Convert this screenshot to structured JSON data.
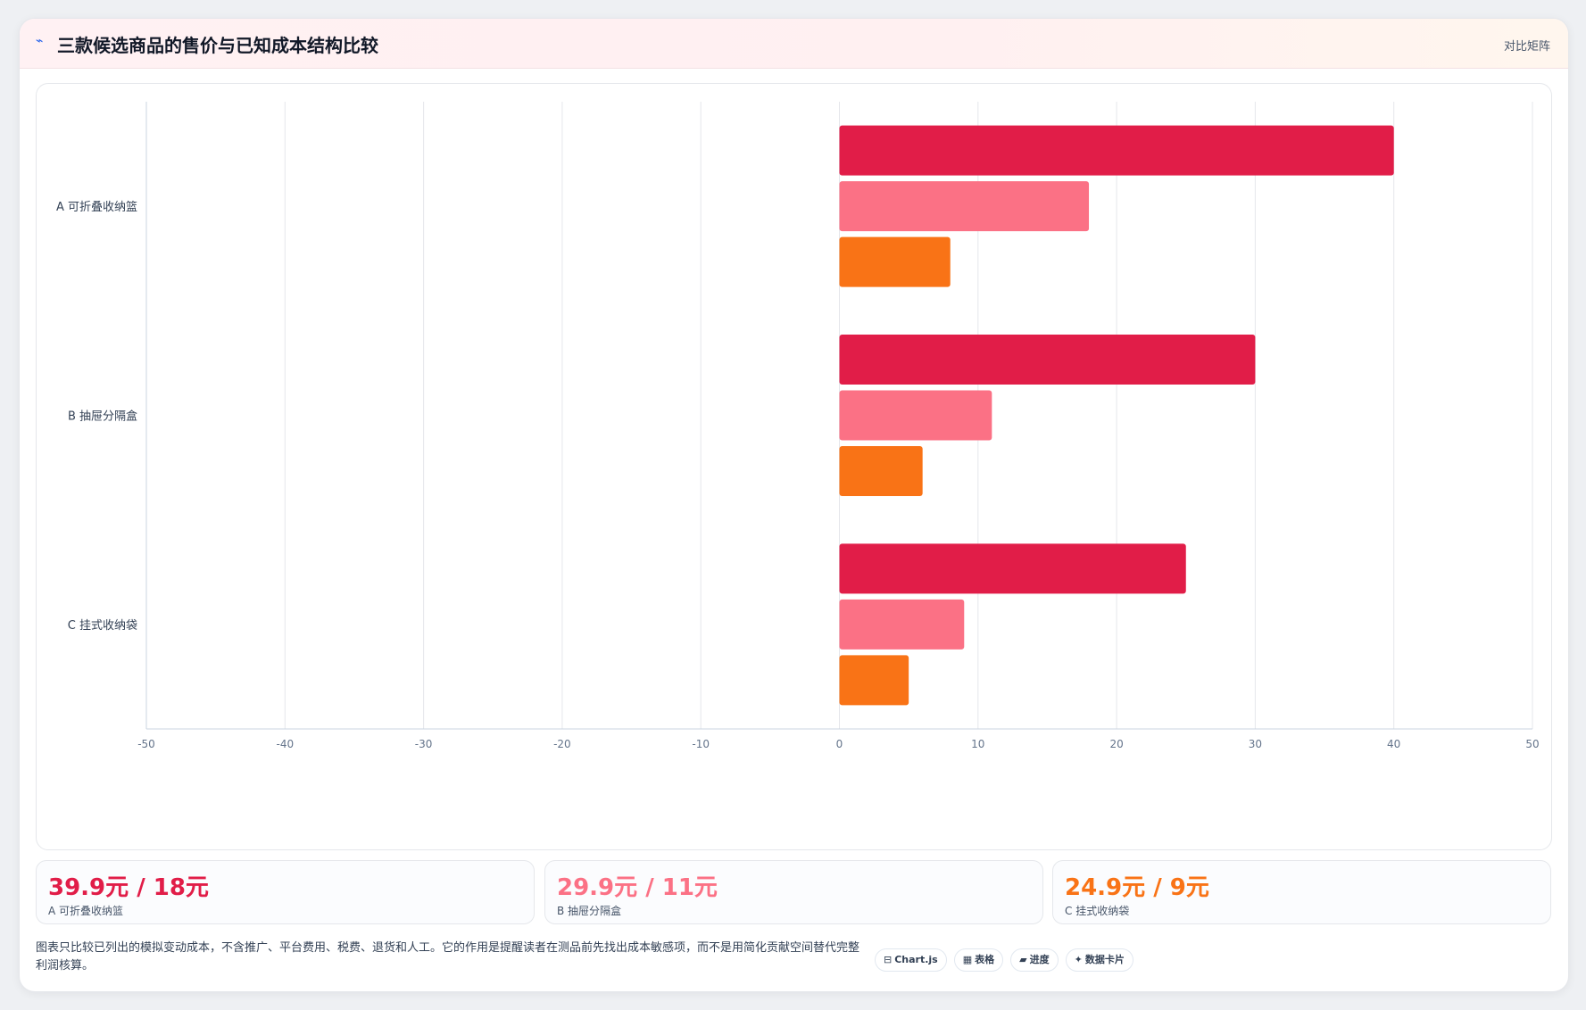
{
  "header": {
    "icon": "chart-line-icon",
    "title": "三款候选商品的售价与已知成本结构比较",
    "tag": "对比矩阵"
  },
  "colors": {
    "price": "#e11d48",
    "cost_mid": "#fb7185",
    "cost_low": "#f97316",
    "grid": "#e5e7eb",
    "axis_label": "#64748b"
  },
  "chart_data": {
    "type": "bar",
    "orientation": "horizontal",
    "categories": [
      "A 可折叠收纳篮",
      "B 抽屉分隔盒",
      "C 挂式收纳袋"
    ],
    "series": [
      {
        "values": [
          40,
          30,
          25
        ]
      },
      {
        "values": [
          18,
          11,
          9
        ]
      },
      {
        "values": [
          8,
          6,
          5
        ]
      }
    ],
    "xlim": [
      -50,
      50
    ],
    "xticks": [
      -50,
      -40,
      -30,
      -20,
      -10,
      0,
      10,
      20,
      30,
      40,
      50
    ],
    "grid": true,
    "legend": "none",
    "title": "",
    "xlabel": "",
    "ylabel": ""
  },
  "cards": [
    {
      "value": "39.9元 / 18元",
      "label": "A 可折叠收纳篮",
      "color": "#e11d48"
    },
    {
      "value": "29.9元 / 11元",
      "label": "B 抽屉分隔盒",
      "color": "#fb7185"
    },
    {
      "value": "24.9元 / 9元",
      "label": "C 挂式收纳袋",
      "color": "#f97316"
    }
  ],
  "note": "图表只比较已列出的模拟变动成本，不含推广、平台费用、税费、退货和人工。它的作用是提醒读者在测品前先找出成本敏感项，而不是用简化贡献空间替代完整利润核算。",
  "chips": [
    {
      "icon": "chart-icon",
      "label": "Chart.js"
    },
    {
      "icon": "table-icon",
      "label": "表格"
    },
    {
      "icon": "progress-icon",
      "label": "进度"
    },
    {
      "icon": "sparkle-icon",
      "label": "数据卡片"
    }
  ]
}
